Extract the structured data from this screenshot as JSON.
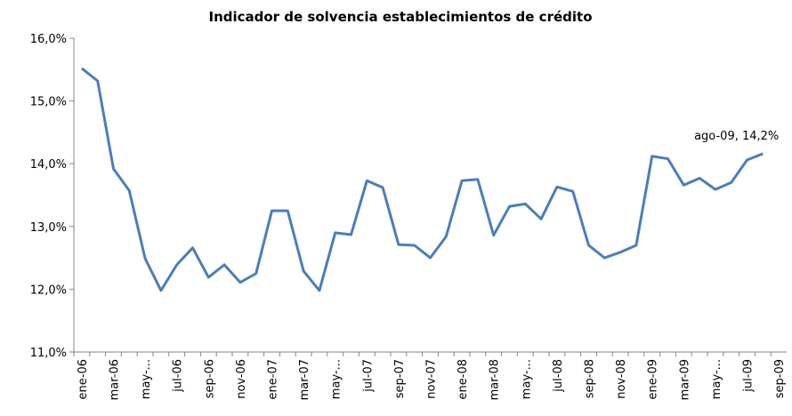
{
  "chart_data": {
    "type": "line",
    "title": "Indicador de solvencia establecimientos de crédito",
    "categories": [
      "ene-06",
      null,
      "mar-06",
      null,
      "may-...",
      null,
      "jul-06",
      null,
      "sep-06",
      null,
      "nov-06",
      null,
      "ene-07",
      null,
      "mar-07",
      null,
      "may-...",
      null,
      "jul-07",
      null,
      "sep-07",
      null,
      "nov-07",
      null,
      "ene-08",
      null,
      "mar-08",
      null,
      "may-...",
      null,
      "jul-08",
      null,
      "sep-08",
      null,
      "nov-08",
      null,
      "ene-09",
      null,
      "mar-09",
      null,
      "may-...",
      null,
      "jul-09",
      null,
      "sep-09"
    ],
    "series": [
      {
        "name": "Indicador de solvencia",
        "color": "#4a7ebb",
        "values": [
          15.52,
          15.32,
          13.92,
          13.57,
          12.49,
          11.98,
          12.39,
          12.66,
          12.19,
          12.39,
          12.11,
          12.25,
          13.25,
          13.25,
          12.29,
          11.98,
          12.9,
          12.87,
          13.73,
          13.62,
          12.71,
          12.7,
          12.5,
          12.84,
          13.73,
          13.75,
          12.86,
          13.32,
          13.36,
          13.12,
          13.63,
          13.56,
          12.7,
          12.5,
          12.59,
          12.7,
          14.12,
          14.08,
          13.66,
          13.77,
          13.59,
          13.7,
          14.06,
          14.16,
          null
        ]
      }
    ],
    "ylim": [
      11,
      16
    ],
    "yticks": [
      {
        "value": 11,
        "label": "11,0%"
      },
      {
        "value": 12,
        "label": "12,0%"
      },
      {
        "value": 13,
        "label": "13,0%"
      },
      {
        "value": 14,
        "label": "14,0%"
      },
      {
        "value": 15,
        "label": "15,0%"
      },
      {
        "value": 16,
        "label": "16,0%"
      }
    ],
    "annotations": [
      {
        "text": "ago-09, 14,2%",
        "index": 43
      }
    ],
    "grid": false
  }
}
